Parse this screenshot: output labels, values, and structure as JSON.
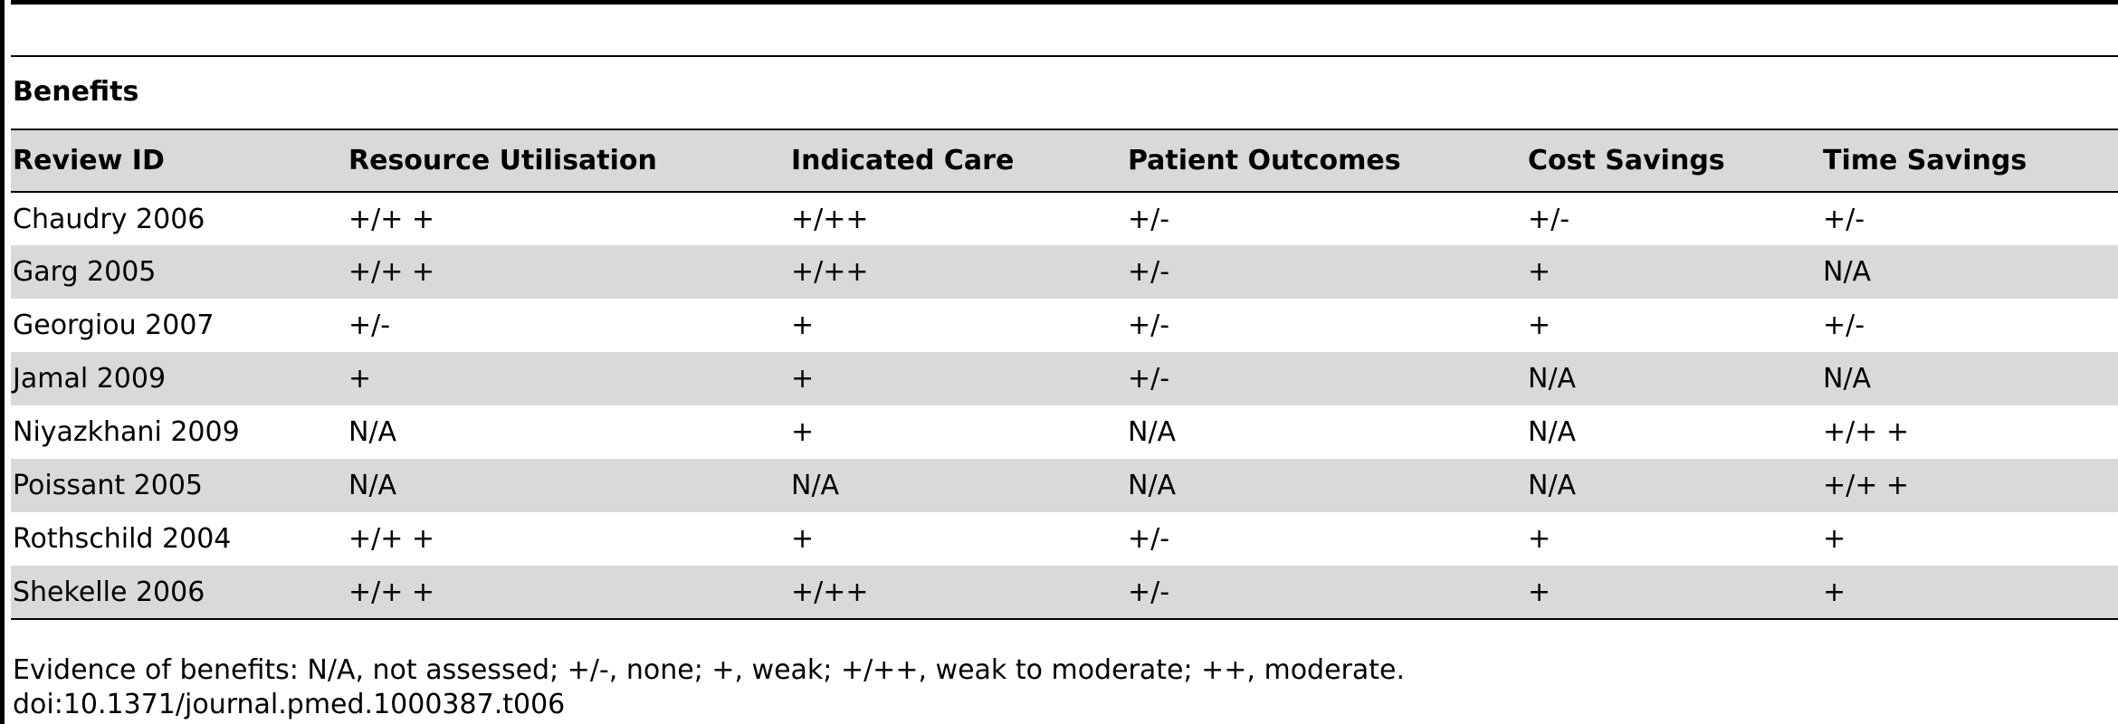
{
  "section_title": "Benefits",
  "table": {
    "headers": [
      "Review ID",
      "Resource Utilisation",
      "Indicated Care",
      "Patient Outcomes",
      "Cost Savings",
      "Time Savings"
    ],
    "rows": [
      [
        "Chaudry 2006",
        "+/+ +",
        "+/++",
        "+/-",
        "+/-",
        "+/-"
      ],
      [
        "Garg 2005",
        "+/+ +",
        "+/++",
        "+/-",
        "+",
        "N/A"
      ],
      [
        "Georgiou 2007",
        "+/-",
        "+",
        "+/-",
        "+",
        "+/-"
      ],
      [
        "Jamal 2009",
        "+",
        "+",
        "+/-",
        "N/A",
        "N/A"
      ],
      [
        "Niyazkhani 2009",
        "N/A",
        "+",
        "N/A",
        "N/A",
        "+/+ +"
      ],
      [
        "Poissant 2005",
        "N/A",
        "N/A",
        "N/A",
        "N/A",
        "+/+ +"
      ],
      [
        "Rothschild 2004",
        "+/+ +",
        "+",
        "+/-",
        "+",
        "+"
      ],
      [
        "Shekelle 2006",
        "+/+ +",
        "+/++",
        "+/-",
        "+",
        "+"
      ]
    ]
  },
  "footnote": "Evidence of benefits: N/A, not assessed; +/-, none; +, weak; +/++, weak to moderate; ++, moderate.",
  "doi": "doi:10.1371/journal.pmed.1000387.t006"
}
